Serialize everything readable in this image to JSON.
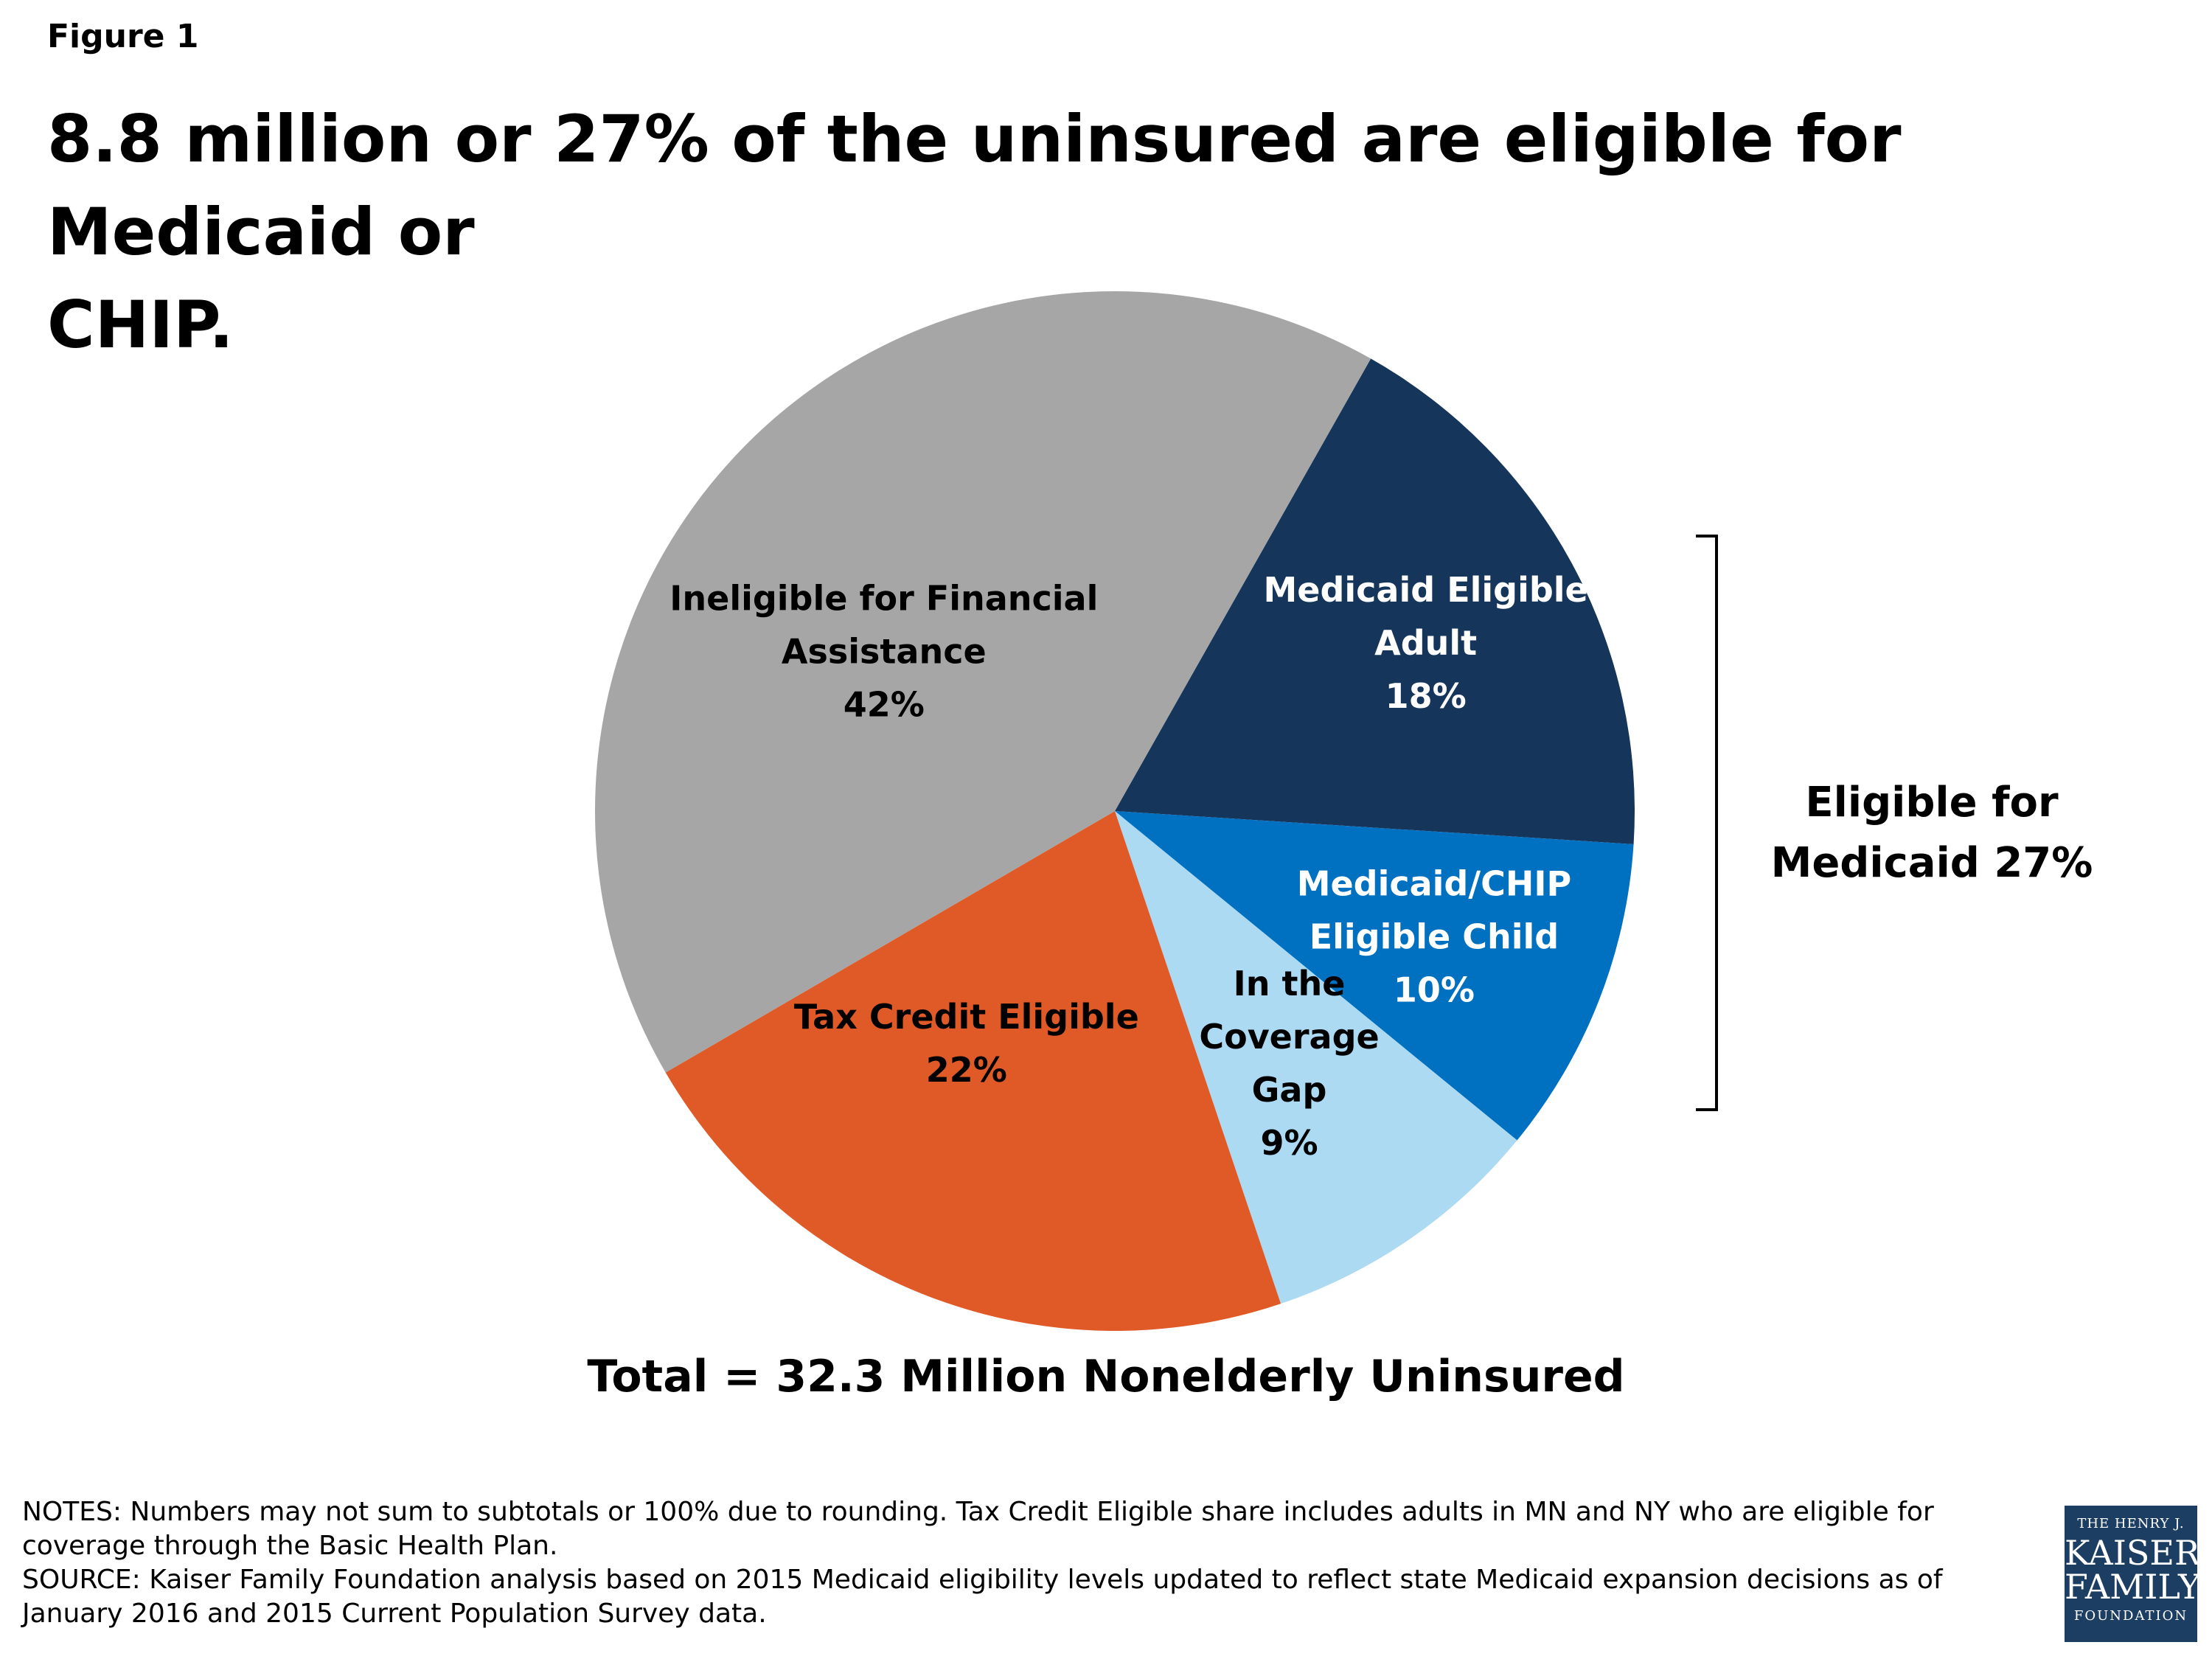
{
  "figure_label": "Figure 1",
  "title_line1": "8.8 million or 27% of the uninsured are eligible for Medicaid or",
  "title_line2": "CHIP.",
  "chart_data": {
    "type": "pie",
    "title": "",
    "slices": [
      {
        "label": [
          "Medicaid Eligible",
          "Adult",
          "18%"
        ],
        "value": 18,
        "color": "#15355a",
        "text_color": "#ffffff"
      },
      {
        "label": [
          "Medicaid/CHIP",
          "Eligible Child",
          "10%"
        ],
        "value": 10,
        "color": "#0070c0",
        "text_color": "#ffffff"
      },
      {
        "label": [
          "In the",
          "Coverage",
          "Gap",
          "9%"
        ],
        "value": 9,
        "color": "#acdaf3",
        "text_color": "#000000"
      },
      {
        "label": [
          "Tax Credit Eligible",
          "22%"
        ],
        "value": 22,
        "color": "#e05a27",
        "text_color": "#000000"
      },
      {
        "label": [
          "Ineligible for Financial",
          "Assistance",
          "42%"
        ],
        "value": 42,
        "color": "#a6a6a6",
        "text_color": "#000000"
      }
    ],
    "bracket_label_line1": "Eligible for",
    "bracket_label_line2": "Medicaid 27%",
    "total_label": "Total = 32.3 Million Nonelderly Uninsured"
  },
  "notes": "NOTES: Numbers may not sum to subtotals or 100% due to rounding. Tax Credit Eligible share includes adults in MN and NY who are eligible for coverage through the Basic Health Plan.",
  "source": "SOURCE: Kaiser Family Foundation analysis based on 2015 Medicaid eligibility levels updated to reflect state Medicaid expansion decisions as of January 2016 and 2015 Current Population Survey data.",
  "logo": {
    "line1": "THE HENRY J.",
    "line2": "KAISER",
    "line3": "FAMILY",
    "line4": "FOUNDATION"
  }
}
